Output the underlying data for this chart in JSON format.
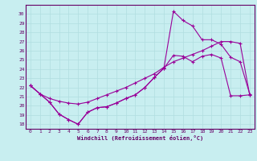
{
  "background_color": "#c8eef0",
  "grid_color": "#b0dde0",
  "line_color": "#990099",
  "xlabel": "Windchill (Refroidissement éolien,°C)",
  "xlim_min": -0.5,
  "xlim_max": 23.5,
  "ylim_min": 17.5,
  "ylim_max": 31.0,
  "yticks": [
    18,
    19,
    20,
    21,
    22,
    23,
    24,
    25,
    26,
    27,
    28,
    29,
    30
  ],
  "xticks": [
    0,
    1,
    2,
    3,
    4,
    5,
    6,
    7,
    8,
    9,
    10,
    11,
    12,
    13,
    14,
    15,
    16,
    17,
    18,
    19,
    20,
    21,
    22,
    23
  ],
  "hours": [
    0,
    1,
    2,
    3,
    4,
    5,
    6,
    7,
    8,
    9,
    10,
    11,
    12,
    13,
    14,
    15,
    16,
    17,
    18,
    19,
    20,
    21,
    22,
    23
  ],
  "line_zigzag": [
    22.2,
    21.3,
    20.4,
    19.1,
    18.5,
    18.0,
    19.3,
    19.8,
    19.9,
    20.3,
    20.8,
    21.2,
    22.0,
    23.1,
    24.1,
    25.5,
    25.4,
    24.8,
    25.4,
    25.6,
    25.2,
    21.1,
    21.1,
    21.2
  ],
  "line_smooth": [
    22.2,
    21.3,
    20.8,
    20.5,
    20.3,
    20.2,
    20.4,
    20.8,
    21.2,
    21.6,
    22.0,
    22.5,
    23.0,
    23.5,
    24.2,
    24.8,
    25.2,
    25.6,
    26.0,
    26.5,
    27.0,
    27.0,
    26.8,
    21.2
  ],
  "line_peak": [
    22.2,
    21.3,
    20.4,
    19.1,
    18.5,
    18.0,
    19.3,
    19.8,
    19.9,
    20.3,
    20.8,
    21.2,
    22.0,
    23.1,
    24.1,
    30.3,
    29.3,
    28.7,
    27.2,
    27.2,
    26.7,
    25.3,
    24.8,
    21.3
  ],
  "tick_fontsize": 4.5,
  "xlabel_fontsize": 5.0,
  "tick_color": "#660066",
  "spine_color": "#660066"
}
